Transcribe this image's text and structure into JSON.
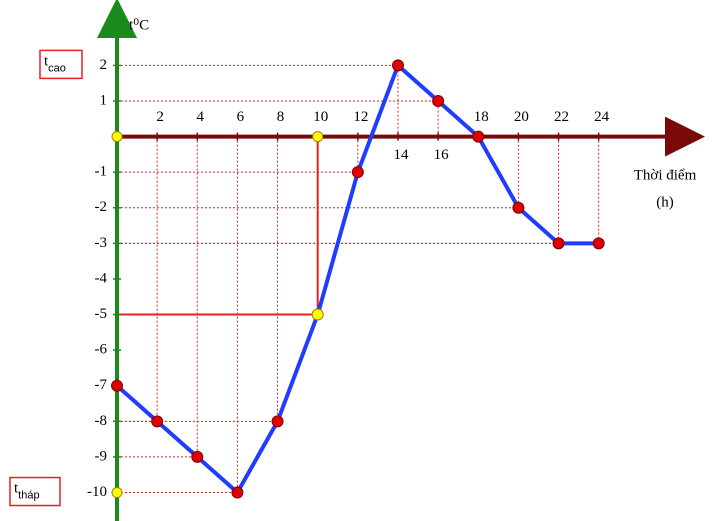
{
  "chart_data": {
    "type": "line",
    "y_label": "t⁰C",
    "x_label": "Thời điểm",
    "x_unit": "(h)",
    "x": [
      0,
      2,
      4,
      6,
      8,
      10,
      12,
      14,
      16,
      18,
      20,
      22,
      24
    ],
    "series": [
      {
        "color": "#1f3cff",
        "values": [
          -7,
          -8,
          -9,
          -10,
          -8,
          -5,
          -1,
          2,
          1,
          0,
          -2,
          -3,
          -3
        ]
      }
    ],
    "marker_color": "#e00000",
    "xlim": [
      0,
      28.7
    ],
    "ylim": [
      -10.8,
      3.5
    ],
    "xticks": [
      2,
      4,
      6,
      8,
      10,
      12,
      14,
      16,
      18,
      20,
      22,
      24
    ],
    "yticks": [
      2,
      1,
      -1,
      -2,
      -3,
      -4,
      -5,
      -6,
      -7,
      -8,
      -9,
      -10
    ],
    "highlight": {
      "x": 10,
      "y": -5
    },
    "annotations": [
      {
        "text": "t",
        "sub": "cao",
        "value": 2
      },
      {
        "text": "t",
        "sub": "tháp",
        "value": -10
      }
    ]
  }
}
